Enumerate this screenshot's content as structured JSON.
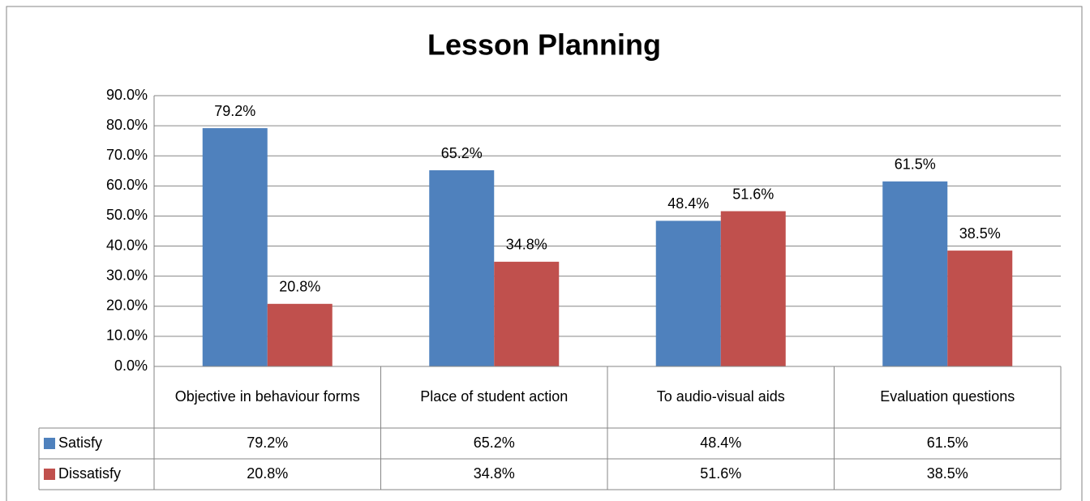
{
  "chart_data": {
    "type": "bar",
    "title": "Lesson Planning",
    "categories": [
      "Objective in behaviour forms",
      "Place of student action",
      "To audio-visual aids",
      "Evaluation questions"
    ],
    "series": [
      {
        "name": "Satisfy",
        "color": "#4f81bd",
        "values": [
          79.2,
          65.2,
          48.4,
          61.5
        ],
        "value_labels": [
          "79.2%",
          "65.2%",
          "48.4%",
          "61.5%"
        ]
      },
      {
        "name": "Dissatisfy",
        "color": "#c0504d",
        "values": [
          20.8,
          34.8,
          51.6,
          38.5
        ],
        "value_labels": [
          "20.8%",
          "34.8%",
          "51.6%",
          "38.5%"
        ]
      }
    ],
    "ylim": [
      0,
      90
    ],
    "yticks": [
      {
        "value": 0,
        "label": "0.0%"
      },
      {
        "value": 10,
        "label": "10.0%"
      },
      {
        "value": 20,
        "label": "20.0%"
      },
      {
        "value": 30,
        "label": "30.0%"
      },
      {
        "value": 40,
        "label": "40.0%"
      },
      {
        "value": 50,
        "label": "50.0%"
      },
      {
        "value": 60,
        "label": "60.0%"
      },
      {
        "value": 70,
        "label": "70.0%"
      },
      {
        "value": 80,
        "label": "80.0%"
      },
      {
        "value": 90,
        "label": "90.0%"
      }
    ],
    "grid": true,
    "data_table": true
  }
}
